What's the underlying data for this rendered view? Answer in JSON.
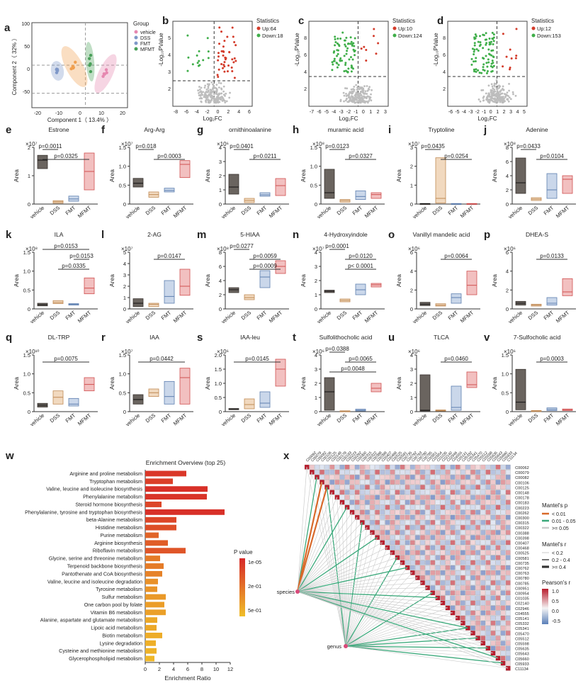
{
  "colors": {
    "vehicle": "#5a534e",
    "DSS": "#e6b98a",
    "FMT": "#9fb7d8",
    "MFMT": "#e88d8d",
    "up": "#d33b2a",
    "down": "#3fae49",
    "grey": "#bdbdbd",
    "pca_vehicle": "#7f98c8",
    "pca_dss": "#f0a050",
    "pca_fmt": "#4aa05a",
    "pca_mfmt": "#e688b0"
  },
  "panel_letters": {
    "a": "a",
    "b": "b",
    "c": "c",
    "d": "d",
    "e": "e",
    "f": "f",
    "g": "g",
    "h": "h",
    "i": "i",
    "j": "j",
    "k": "k",
    "l": "l",
    "m": "m",
    "n": "n",
    "o": "o",
    "p": "p",
    "q": "q",
    "r": "r",
    "s": "s",
    "t": "t",
    "u": "u",
    "v": "v",
    "w": "w",
    "x": "x"
  },
  "pca": {
    "xlabel": "Component 1（ 13.4% ）",
    "ylabel": "Component 2（ 32% ）",
    "xticks": [
      "-20",
      "-10",
      "0",
      "10",
      "20"
    ],
    "yticks": [
      "100",
      "50",
      "0",
      "-50"
    ],
    "legend_title": "Group",
    "legend": [
      "vehicle",
      "DSS",
      "FMT",
      "MFMT"
    ]
  },
  "volcano_xlabel": "Log₂FC",
  "volcano_ylabel": "-Log₁₀PValue",
  "volcano_stats_title": "Statistics",
  "volcanoes": [
    {
      "up": "Up:64",
      "down": "Down:18",
      "xticks": [
        "-8",
        "-6",
        "-4",
        "-2",
        "0",
        "2",
        "4",
        "6"
      ],
      "yticks": [
        "2",
        "3",
        "4",
        "5"
      ]
    },
    {
      "up": "Up:10",
      "down": "Down:124",
      "xticks": [
        "-7",
        "-6",
        "-5",
        "-4",
        "-3",
        "-2",
        "-1",
        "0",
        "1",
        "2",
        "3"
      ],
      "yticks": [
        "2",
        "4",
        "6",
        "8"
      ]
    },
    {
      "up": "Up:12",
      "down": "Down:153",
      "xticks": [
        "-6",
        "-5",
        "-4",
        "-3",
        "-2",
        "-1",
        "0",
        "1",
        "2",
        "3",
        "4",
        "5"
      ],
      "yticks": [
        "2",
        "4",
        "6",
        "8"
      ]
    }
  ],
  "box_ylabel": "Area",
  "groups": [
    "vehicle",
    "DSS",
    "FMT",
    "MFMT"
  ],
  "chart_data": [
    {
      "type": "box",
      "title": "Estrone",
      "exponent": "×10⁷",
      "ylim": [
        0,
        2
      ],
      "yticks": [
        "0",
        "1",
        "2"
      ],
      "boxes": [
        [
          1.25,
          1.55,
          1.72
        ],
        [
          0.03,
          0.08,
          0.12
        ],
        [
          0.1,
          0.18,
          0.28
        ],
        [
          0.5,
          1.15,
          1.8
        ]
      ],
      "pvals": [
        {
          "from": 0,
          "to": 1,
          "text": "p=0.0011"
        },
        {
          "from": 0,
          "to": 3,
          "text": "p=0.0325"
        }
      ]
    },
    {
      "type": "box",
      "title": "Arg-Arg",
      "exponent": "×10⁷",
      "ylim": [
        0,
        1.5
      ],
      "yticks": [
        "0",
        "0.5",
        "1.0",
        "1.5"
      ],
      "boxes": [
        [
          0.45,
          0.55,
          0.68
        ],
        [
          0.18,
          0.25,
          0.32
        ],
        [
          0.32,
          0.36,
          0.42
        ],
        [
          0.7,
          1.05,
          1.15
        ]
      ],
      "pvals": [
        {
          "from": 0,
          "to": 1,
          "text": "p=0.018"
        },
        {
          "from": 1,
          "to": 3,
          "text": "p=0.0003"
        }
      ]
    },
    {
      "type": "box",
      "title": "ornithinoalanine",
      "exponent": "×10⁶",
      "ylim": [
        0,
        4
      ],
      "yticks": [
        "0",
        "1",
        "2",
        "3",
        "4"
      ],
      "boxes": [
        [
          0.7,
          1.2,
          2.1
        ],
        [
          0.1,
          0.25,
          0.4
        ],
        [
          0.55,
          0.65,
          0.8
        ],
        [
          0.6,
          1.3,
          1.8
        ]
      ],
      "pvals": [
        {
          "from": 0,
          "to": 1,
          "text": "p=0.0401"
        },
        {
          "from": 1,
          "to": 3,
          "text": "p=0.0211"
        }
      ]
    },
    {
      "type": "box",
      "title": "muramic acid",
      "exponent": "×10⁸",
      "ylim": [
        0,
        1.5
      ],
      "yticks": [
        "0",
        "0.5",
        "1.0",
        "1.5"
      ],
      "boxes": [
        [
          0.15,
          0.3,
          0.92
        ],
        [
          0.05,
          0.09,
          0.12
        ],
        [
          0.12,
          0.2,
          0.35
        ],
        [
          0.15,
          0.25,
          0.3
        ]
      ],
      "pvals": [
        {
          "from": 0,
          "to": 1,
          "text": "p=0.0123"
        },
        {
          "from": 1,
          "to": 3,
          "text": "p=0.0327"
        }
      ]
    },
    {
      "type": "box",
      "title": "Tryptoline",
      "exponent": "×10⁷",
      "ylim": [
        0,
        3
      ],
      "yticks": [
        "0",
        "1",
        "2",
        "3"
      ],
      "boxes": [
        [
          0.01,
          0.02,
          0.03
        ],
        [
          0.05,
          0.3,
          2.45
        ],
        [
          0.01,
          0.02,
          0.03
        ],
        [
          0.01,
          0.02,
          0.03
        ]
      ],
      "pvals": [
        {
          "from": 0,
          "to": 1,
          "text": "p=0.0435"
        },
        {
          "from": 1,
          "to": 3,
          "text": "p=0.0254"
        }
      ]
    },
    {
      "type": "box",
      "title": "Adenine",
      "exponent": "×10⁸",
      "ylim": [
        0,
        8
      ],
      "yticks": [
        "0",
        "2",
        "4",
        "6",
        "8"
      ],
      "boxes": [
        [
          1.5,
          3.0,
          6.5
        ],
        [
          0.5,
          0.7,
          0.9
        ],
        [
          0.8,
          2.0,
          4.3
        ],
        [
          1.5,
          3.5,
          4.0
        ]
      ],
      "pvals": [
        {
          "from": 0,
          "to": 1,
          "text": "p=0.0433"
        },
        {
          "from": 1,
          "to": 3,
          "text": "p=0.0104"
        }
      ]
    },
    {
      "type": "box",
      "title": "ILA",
      "exponent": "×10⁸",
      "ylim": [
        0,
        1.5
      ],
      "yticks": [
        "0",
        "0.5",
        "1.0",
        "1.5"
      ],
      "boxes": [
        [
          0.08,
          0.11,
          0.15
        ],
        [
          0.14,
          0.17,
          0.22
        ],
        [
          0.1,
          0.12,
          0.14
        ],
        [
          0.4,
          0.55,
          0.82
        ]
      ],
      "pvals": [
        {
          "from": 0,
          "to": 3,
          "text": "p=0.0153"
        },
        {
          "from": 2,
          "to": 3,
          "text": "p=0.0153"
        },
        {
          "from": 1,
          "to": 3,
          "text": "p=0.0335"
        }
      ]
    },
    {
      "type": "box",
      "title": "2-AG",
      "exponent": "×10⁷",
      "ylim": [
        0,
        5
      ],
      "yticks": [
        "0",
        "1",
        "2",
        "3",
        "4",
        "5"
      ],
      "boxes": [
        [
          0.2,
          0.5,
          0.9
        ],
        [
          0.2,
          0.4,
          0.5
        ],
        [
          0.5,
          1.1,
          2.5
        ],
        [
          1.2,
          2.0,
          3.5
        ]
      ],
      "pvals": [
        {
          "from": 1,
          "to": 3,
          "text": "p=0.0147"
        }
      ]
    },
    {
      "type": "box",
      "title": "5-HIAA",
      "exponent": "×10⁸",
      "ylim": [
        0,
        8
      ],
      "yticks": [
        "0",
        "2",
        "4",
        "6",
        "8"
      ],
      "boxes": [
        [
          2.3,
          2.7,
          3.0
        ],
        [
          1.3,
          1.6,
          2.0
        ],
        [
          3.0,
          4.5,
          5.4
        ],
        [
          5.0,
          6.0,
          6.8
        ]
      ],
      "pvals": [
        {
          "from": 0,
          "to": 1,
          "text": "p=0.0277"
        },
        {
          "from": 1,
          "to": 3,
          "text": "p=0.0059"
        },
        {
          "from": 1,
          "to": 3,
          "text": "p=0.0009"
        }
      ]
    },
    {
      "type": "box",
      "title": "4-Hydroxyindole",
      "exponent": "×10⁷",
      "ylim": [
        0,
        4
      ],
      "yticks": [
        "0",
        "1",
        "2",
        "3",
        "4"
      ],
      "boxes": [
        [
          1.15,
          1.25,
          1.32
        ],
        [
          0.5,
          0.6,
          0.7
        ],
        [
          1.0,
          1.35,
          1.75
        ],
        [
          1.55,
          1.7,
          1.8
        ]
      ],
      "pvals": [
        {
          "from": 0,
          "to": 1,
          "text": "p=0.0001"
        },
        {
          "from": 1,
          "to": 3,
          "text": "p=0.0120"
        },
        {
          "from": 1,
          "to": 3,
          "text": "p< 0.0001"
        }
      ]
    },
    {
      "type": "box",
      "title": "Vanillyl mandelic acid",
      "exponent": "×10⁶",
      "ylim": [
        0,
        6
      ],
      "yticks": [
        "0",
        "2",
        "4",
        "6"
      ],
      "boxes": [
        [
          0.35,
          0.5,
          0.7
        ],
        [
          0.3,
          0.4,
          0.55
        ],
        [
          0.6,
          1.2,
          1.6
        ],
        [
          1.5,
          2.5,
          4.0
        ]
      ],
      "pvals": [
        {
          "from": 1,
          "to": 3,
          "text": "p=0.0064"
        }
      ]
    },
    {
      "type": "box",
      "title": "DHEA-S",
      "exponent": "×10⁶",
      "ylim": [
        0,
        6
      ],
      "yticks": [
        "0",
        "2",
        "4",
        "6"
      ],
      "boxes": [
        [
          0.4,
          0.6,
          0.8
        ],
        [
          0.3,
          0.4,
          0.5
        ],
        [
          0.4,
          0.6,
          1.2
        ],
        [
          1.4,
          1.8,
          3.2
        ]
      ],
      "pvals": [
        {
          "from": 1,
          "to": 3,
          "text": "p=0.0133"
        }
      ]
    },
    {
      "type": "box",
      "title": "DL-TRP",
      "exponent": "×10¹⁰",
      "ylim": [
        0,
        1.5
      ],
      "yticks": [
        "0",
        "0.5",
        "1.0",
        "1.5"
      ],
      "boxes": [
        [
          0.12,
          0.17,
          0.22
        ],
        [
          0.2,
          0.38,
          0.55
        ],
        [
          0.15,
          0.2,
          0.35
        ],
        [
          0.55,
          0.72,
          0.9
        ]
      ],
      "pvals": [
        {
          "from": 0,
          "to": 3,
          "text": "p=0.0075"
        }
      ]
    },
    {
      "type": "box",
      "title": "IAA",
      "exponent": "×10⁷",
      "ylim": [
        0,
        1.5
      ],
      "yticks": [
        "0",
        "0.5",
        "1.0",
        "1.5"
      ],
      "boxes": [
        [
          0.2,
          0.32,
          0.45
        ],
        [
          0.4,
          0.5,
          0.6
        ],
        [
          0.2,
          0.4,
          0.8
        ],
        [
          0.2,
          0.9,
          1.15
        ]
      ],
      "pvals": [
        {
          "from": 0,
          "to": 3,
          "text": "p=0.0442"
        }
      ]
    },
    {
      "type": "box",
      "title": "IAA-leu",
      "exponent": "×10⁶",
      "ylim": [
        0,
        2.0
      ],
      "yticks": [
        "0",
        "0.5",
        "1.0",
        "1.5",
        "2.0"
      ],
      "boxes": [
        [
          0.07,
          0.09,
          0.11
        ],
        [
          0.1,
          0.25,
          0.45
        ],
        [
          0.15,
          0.3,
          0.7
        ],
        [
          0.9,
          1.5,
          1.85
        ]
      ],
      "pvals": [
        {
          "from": 0,
          "to": 3,
          "text": "p=0.0145"
        }
      ]
    },
    {
      "type": "box",
      "title": "Sulfolithocholic acid",
      "exponent": "×10⁶",
      "ylim": [
        0,
        4
      ],
      "yticks": [
        "0",
        "1",
        "2",
        "3",
        "4"
      ],
      "boxes": [
        [
          0.1,
          1.4,
          2.4
        ],
        [
          0.02,
          0.04,
          0.06
        ],
        [
          0.05,
          0.1,
          0.18
        ],
        [
          1.4,
          1.65,
          2.0
        ]
      ],
      "pvals": [
        {
          "from": 0,
          "to": 1,
          "text": "p=0.0388"
        },
        {
          "from": 1,
          "to": 3,
          "text": "p=0.0065"
        },
        {
          "from": 0,
          "to": 3,
          "text": "p=0.0048"
        }
      ]
    },
    {
      "type": "box",
      "title": "TLCA",
      "exponent": "×10⁶",
      "ylim": [
        0,
        4
      ],
      "yticks": [
        "0",
        "1",
        "2",
        "3",
        "4"
      ],
      "boxes": [
        [
          0.05,
          0.1,
          2.6
        ],
        [
          0.05,
          0.08,
          0.12
        ],
        [
          0.1,
          0.3,
          1.8
        ],
        [
          1.7,
          1.9,
          2.8
        ]
      ],
      "pvals": [
        {
          "from": 1,
          "to": 3,
          "text": "p=0.0460"
        }
      ]
    },
    {
      "type": "box",
      "title": "7-Sulfocholic acid",
      "exponent": "×10⁶",
      "ylim": [
        0,
        1.5
      ],
      "yticks": [
        "0",
        "0.5",
        "1.0",
        "1.5"
      ],
      "boxes": [
        [
          0.05,
          0.25,
          1.12
        ],
        [
          0.01,
          0.02,
          0.03
        ],
        [
          0.03,
          0.06,
          0.1
        ],
        [
          0.03,
          0.05,
          0.07
        ]
      ],
      "pvals": [
        {
          "from": 1,
          "to": 3,
          "text": "p=0.0003"
        }
      ]
    },
    {
      "type": "bar",
      "title": "Enrichment Overview (top 25)",
      "xlabel": "Enrichment Ratio",
      "xlim": [
        0,
        12
      ],
      "xticks": [
        "0",
        "2",
        "4",
        "6",
        "8",
        "10",
        "12"
      ],
      "legend_title": "P value",
      "legend_ticks": [
        "1e-05",
        "2e-01",
        "5e-01"
      ],
      "categories": [
        "Arginine and proline metabolism",
        "Tryptophan metabolism",
        "Valine, leucine and isoleucine biosynthesis",
        "Phenylalanine metabolism",
        "Steroid hormone biosynthesis",
        "Phenylalanine, tyrosine and tryptophan biosynthesis",
        "beta-Alanine metabolism",
        "Histidine metabolism",
        "Purine metabolism",
        "Arginine biosynthesis",
        "Riboflavin metabolism",
        "Glycine, serine and threonine metabolism",
        "Terpenoid backbone biosynthesis",
        "Pantothenate and CoA biosynthesis",
        "Valine, leucine and isoleucine degradation",
        "Tyrosine metabolism",
        "Sulfur metabolism",
        "One carbon pool by folate",
        "Vitamin B6 metabolism",
        "Alanine, aspartate and glutamate metabolism",
        "Lipoic acid metabolism",
        "Biotin metabolism",
        "Lysine degradation",
        "Cysteine and methionine metabolism",
        "Glycerophospholipid metabolism"
      ],
      "values": [
        5.8,
        3.9,
        8.8,
        8.7,
        2.3,
        11.2,
        4.4,
        4.4,
        1.9,
        3.2,
        5.7,
        2.1,
        2.6,
        2.4,
        1.8,
        1.7,
        2.9,
        2.7,
        2.9,
        1.7,
        1.6,
        2.4,
        1.5,
        1.6,
        1.3
      ],
      "pshade": [
        0.1,
        0.15,
        0.05,
        0.08,
        0.2,
        0.05,
        0.2,
        0.25,
        0.4,
        0.35,
        0.3,
        0.55,
        0.55,
        0.6,
        0.7,
        0.72,
        0.75,
        0.78,
        0.8,
        0.85,
        0.85,
        0.88,
        0.9,
        0.92,
        0.95
      ]
    }
  ],
  "mantel": {
    "col_labels": [
      "C00062",
      "C00079",
      "C00082",
      "C00106",
      "C00125",
      "C00148",
      "C00178",
      "C00183",
      "C00223",
      "C00262",
      "C00300",
      "C00315",
      "C00322",
      "C00388",
      "C00398",
      "C00407",
      "C00468",
      "C00525",
      "C00581",
      "C00735",
      "C00762",
      "C00763",
      "C00780",
      "C00785",
      "C00951",
      "C00954",
      "C01035",
      "C02140",
      "C02946",
      "C04555",
      "C05141",
      "C05332",
      "C05341",
      "C05470",
      "C05512",
      "C05598",
      "C05635",
      "C05643",
      "C05660",
      "C05933",
      "C11134"
    ],
    "nodes": [
      "species",
      "genus"
    ],
    "legend_p_title": "Mantel's p",
    "legend_p": [
      "< 0.01",
      "0.01 - 0.05",
      ">= 0.05"
    ],
    "legend_r_title": "Mantel's r",
    "legend_r": [
      "< 0.2",
      "0.2 - 0.4",
      ">= 0.4"
    ],
    "legend_pr_title": "Pearson's r",
    "legend_pr_ticks": [
      "1.0",
      "0.5",
      "0.0",
      "-0.5"
    ],
    "p_colors": [
      "#d8692a",
      "#3aa87a",
      "#cccccc"
    ]
  }
}
